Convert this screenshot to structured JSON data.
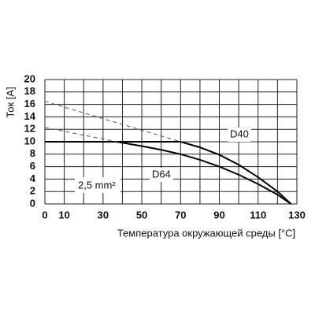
{
  "chart_data": {
    "type": "line",
    "ylabel": "Ток [A]",
    "xlabel": "Температура окружающей среды [°C]",
    "annotations": [
      "2,5 mm²"
    ],
    "xlim": [
      0,
      130
    ],
    "ylim": [
      0,
      20
    ],
    "xticks": [
      0,
      10,
      30,
      50,
      70,
      90,
      110,
      130
    ],
    "xgrid": [
      0,
      10,
      20,
      30,
      40,
      50,
      60,
      70,
      80,
      90,
      100,
      110,
      120,
      130
    ],
    "yticks": [
      0,
      2,
      4,
      6,
      8,
      10,
      12,
      14,
      16,
      18,
      20
    ],
    "grid": true,
    "series": [
      {
        "name": "D40",
        "color": "#000000",
        "dashed": false,
        "x": [
          0,
          70,
          80,
          90,
          100,
          110,
          120,
          127
        ],
        "values": [
          10,
          10,
          9.1,
          7.9,
          6.3,
          4.3,
          2,
          0
        ]
      },
      {
        "name": "D64",
        "color": "#000000",
        "dashed": false,
        "x": [
          0,
          37,
          50,
          60,
          70,
          80,
          90,
          100,
          110,
          120,
          127
        ],
        "values": [
          10,
          10,
          9.3,
          8.7,
          8,
          7.1,
          6,
          4.7,
          3.2,
          1.5,
          0
        ]
      },
      {
        "color": "#555555",
        "dashed": true,
        "x": [
          0,
          70
        ],
        "values": [
          16.5,
          10
        ]
      },
      {
        "color": "#555555",
        "dashed": true,
        "x": [
          0,
          37
        ],
        "values": [
          12.3,
          10
        ]
      }
    ]
  }
}
